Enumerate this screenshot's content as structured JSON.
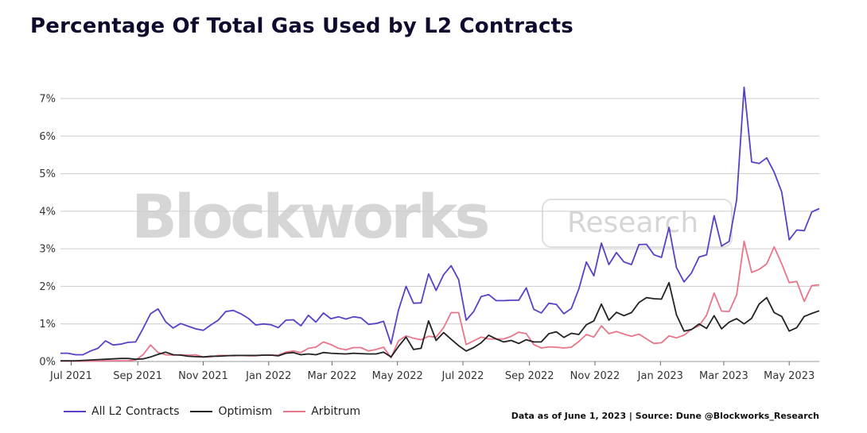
{
  "title": "Percentage Of Total Gas Used by L2 Contracts",
  "source_note": "Data as of June 1, 2023 | Source: Dune @Blockworks_Research",
  "watermark": {
    "main": "Blockworks",
    "sub": "Research"
  },
  "colors": {
    "all_l2": "#5b3fc7",
    "optimism": "#222222",
    "arbitrum": "#e8768a",
    "grid": "#cccccc"
  },
  "chart_data": {
    "type": "line",
    "start_date": "2021-06-21",
    "interval_days": 7,
    "ylim": [
      0,
      7.4
    ],
    "yticks": [
      "0%",
      "1%",
      "2%",
      "3%",
      "4%",
      "5%",
      "6%",
      "7%"
    ],
    "xticks": [
      {
        "label": "Jul 2021",
        "date": "2021-07-01"
      },
      {
        "label": "Sep 2021",
        "date": "2021-09-01"
      },
      {
        "label": "Nov 2021",
        "date": "2021-11-01"
      },
      {
        "label": "Jan 2022",
        "date": "2022-01-01"
      },
      {
        "label": "Mar 2022",
        "date": "2022-03-01"
      },
      {
        "label": "May 2022",
        "date": "2022-05-01"
      },
      {
        "label": "Jul 2022",
        "date": "2022-07-01"
      },
      {
        "label": "Sep 2022",
        "date": "2022-09-01"
      },
      {
        "label": "Nov 2022",
        "date": "2022-11-01"
      },
      {
        "label": "Jan 2023",
        "date": "2023-01-01"
      },
      {
        "label": "Mar 2023",
        "date": "2023-03-01"
      },
      {
        "label": "May 2023",
        "date": "2023-05-01"
      }
    ],
    "grid": true,
    "legend": "bottom-left",
    "series": [
      {
        "name": "All L2 Contracts",
        "color": "#5b3fc7",
        "values": [
          0.22,
          0.22,
          0.18,
          0.18,
          0.28,
          0.35,
          0.55,
          0.44,
          0.46,
          0.51,
          0.52,
          0.88,
          1.27,
          1.4,
          1.06,
          0.89,
          1.01,
          0.94,
          0.87,
          0.83,
          0.97,
          1.1,
          1.33,
          1.36,
          1.27,
          1.15,
          0.97,
          1.0,
          0.98,
          0.9,
          1.1,
          1.11,
          0.95,
          1.23,
          1.05,
          1.29,
          1.14,
          1.19,
          1.13,
          1.19,
          1.16,
          0.99,
          1.01,
          1.07,
          0.47,
          1.37,
          2.0,
          1.55,
          1.56,
          2.33,
          1.89,
          2.31,
          2.55,
          2.18,
          1.1,
          1.33,
          1.73,
          1.78,
          1.62,
          1.62,
          1.63,
          1.63,
          1.96,
          1.39,
          1.29,
          1.55,
          1.52,
          1.27,
          1.41,
          1.93,
          2.65,
          2.28,
          3.15,
          2.58,
          2.9,
          2.65,
          2.58,
          3.11,
          3.12,
          2.84,
          2.77,
          3.57,
          2.5,
          2.12,
          2.36,
          2.78,
          2.84,
          3.88,
          3.07,
          3.2,
          4.3,
          7.3,
          5.31,
          5.27,
          5.42,
          5.04,
          4.51,
          3.24,
          3.5,
          3.48,
          3.98,
          4.07
        ]
      },
      {
        "name": "Optimism",
        "color": "#222222",
        "values": [
          0.02,
          0.02,
          0.02,
          0.03,
          0.04,
          0.05,
          0.06,
          0.07,
          0.08,
          0.08,
          0.06,
          0.07,
          0.12,
          0.19,
          0.25,
          0.18,
          0.17,
          0.14,
          0.13,
          0.12,
          0.14,
          0.14,
          0.15,
          0.16,
          0.16,
          0.16,
          0.16,
          0.17,
          0.17,
          0.15,
          0.22,
          0.24,
          0.18,
          0.2,
          0.18,
          0.24,
          0.22,
          0.21,
          0.2,
          0.22,
          0.21,
          0.2,
          0.2,
          0.25,
          0.12,
          0.4,
          0.65,
          0.32,
          0.35,
          1.08,
          0.56,
          0.77,
          0.59,
          0.42,
          0.28,
          0.37,
          0.5,
          0.7,
          0.6,
          0.52,
          0.56,
          0.48,
          0.58,
          0.52,
          0.52,
          0.74,
          0.79,
          0.64,
          0.75,
          0.72,
          0.98,
          1.08,
          1.53,
          1.1,
          1.31,
          1.22,
          1.3,
          1.57,
          1.7,
          1.67,
          1.66,
          2.1,
          1.24,
          0.81,
          0.85,
          1.0,
          0.88,
          1.22,
          0.87,
          1.05,
          1.14,
          1.0,
          1.15,
          1.53,
          1.7,
          1.3,
          1.2,
          0.81,
          0.9,
          1.2,
          1.28,
          1.35
        ]
      },
      {
        "name": "Arbitrum",
        "color": "#e8768a",
        "values": [
          0.01,
          0.01,
          0.01,
          0.01,
          0.01,
          0.01,
          0.02,
          0.02,
          0.02,
          0.02,
          0.04,
          0.18,
          0.44,
          0.24,
          0.18,
          0.17,
          0.18,
          0.17,
          0.18,
          0.12,
          0.12,
          0.16,
          0.16,
          0.15,
          0.16,
          0.15,
          0.15,
          0.17,
          0.17,
          0.17,
          0.25,
          0.28,
          0.24,
          0.35,
          0.38,
          0.52,
          0.45,
          0.35,
          0.31,
          0.37,
          0.37,
          0.28,
          0.32,
          0.38,
          0.1,
          0.55,
          0.68,
          0.62,
          0.58,
          0.67,
          0.65,
          0.9,
          1.3,
          1.3,
          0.45,
          0.55,
          0.65,
          0.6,
          0.6,
          0.6,
          0.67,
          0.78,
          0.74,
          0.45,
          0.36,
          0.39,
          0.38,
          0.36,
          0.38,
          0.53,
          0.72,
          0.65,
          0.95,
          0.74,
          0.8,
          0.73,
          0.67,
          0.73,
          0.6,
          0.48,
          0.5,
          0.68,
          0.63,
          0.7,
          0.86,
          0.95,
          1.23,
          1.82,
          1.34,
          1.33,
          1.77,
          3.2,
          2.37,
          2.45,
          2.6,
          3.05,
          2.6,
          2.1,
          2.13,
          1.6,
          2.02,
          2.04
        ]
      }
    ]
  }
}
